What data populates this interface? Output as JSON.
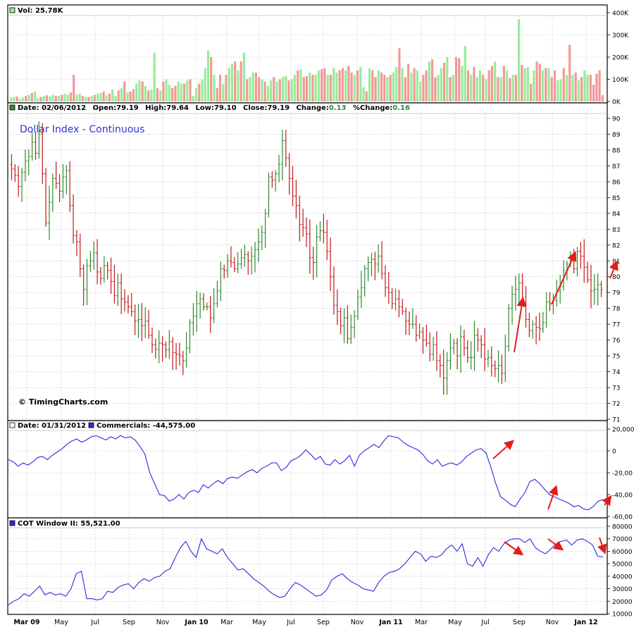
{
  "colors": {
    "up": "#2e8b2e",
    "down": "#c41818",
    "volume_up": "#98ec98",
    "volume_down": "#f29898",
    "line": "#2a2ae0",
    "title": "#3333cc",
    "grid": "#c8c8c8",
    "frame": "#000000",
    "arrow": "#e41b1b"
  },
  "header": {
    "vol_label": "Vol: 25.78K",
    "price_header": {
      "date": "Date: 02/06/2012",
      "open": "Open:79.19",
      "high": "High:79.64",
      "low": "Low:79.10",
      "close": "Close:79.19",
      "change_label": "Change:",
      "change_value": "0.13",
      "pct_label": "%Change:",
      "pct_value": "0.16"
    },
    "comm_header": {
      "date": "Date: 01/31/2012",
      "label": "Commercials: -44,575.00"
    },
    "cot_label": "COT Window II: 55,521.00"
  },
  "chart_title": "Dollar Index - Continuous",
  "watermark": "© TimingCharts.com",
  "chart_data": [
    {
      "type": "bar",
      "name_on_chart": "Vol",
      "x_ticks": [
        "Mar 09",
        "May",
        "Jul",
        "Sep",
        "Nov",
        "Jan 10",
        "Mar",
        "May",
        "Jul",
        "Sep",
        "Nov",
        "Jan 11",
        "Mar",
        "May",
        "Jul",
        "Sep",
        "Nov",
        "Jan 12"
      ],
      "y_tick_labels": [
        "400K",
        "300K",
        "200K",
        "100K",
        "0K"
      ],
      "ylim": [
        0,
        400
      ],
      "unit": "K",
      "values": [
        18,
        20,
        22,
        12,
        18,
        25,
        30,
        38,
        45,
        15,
        20,
        25,
        28,
        22,
        30,
        25,
        25,
        30,
        35,
        30,
        40,
        120,
        30,
        35,
        25,
        20,
        20,
        25,
        30,
        35,
        38,
        45,
        28,
        35,
        55,
        25,
        50,
        60,
        90,
        40,
        45,
        55,
        80,
        95,
        90,
        70,
        50,
        55,
        220,
        60,
        50,
        90,
        100,
        75,
        60,
        70,
        90,
        80,
        80,
        95,
        100,
        25,
        60,
        80,
        100,
        150,
        230,
        200,
        120,
        60,
        120,
        80,
        120,
        150,
        170,
        180,
        140,
        180,
        220,
        100,
        110,
        130,
        130,
        110,
        100,
        90,
        70,
        95,
        110,
        90,
        100,
        110,
        115,
        95,
        100,
        120,
        140,
        145,
        110,
        115,
        130,
        120,
        120,
        140,
        145,
        150,
        120,
        120,
        150,
        130,
        140,
        150,
        140,
        160,
        130,
        120,
        140,
        155,
        65,
        45,
        150,
        140,
        110,
        140,
        130,
        120,
        110,
        120,
        130,
        155,
        240,
        150,
        110,
        170,
        130,
        150,
        140,
        90,
        120,
        140,
        180,
        190,
        110,
        120,
        150,
        175,
        200,
        110,
        120,
        200,
        195,
        160,
        250,
        140,
        120,
        155,
        110,
        140,
        120,
        100,
        140,
        160,
        180,
        110,
        110,
        160,
        140,
        105,
        120,
        120,
        370,
        165,
        150,
        155,
        80,
        140,
        180,
        170,
        140,
        150,
        150,
        110,
        140,
        95,
        100,
        150,
        120,
        255,
        120,
        130,
        95,
        110,
        140,
        120,
        120,
        75,
        125,
        140,
        28
      ],
      "up_flags": [
        1,
        1,
        0,
        1,
        1,
        0,
        1,
        0,
        1,
        1,
        0,
        1,
        0,
        1,
        1,
        0,
        1,
        0,
        1,
        1,
        0,
        0,
        1,
        1,
        0,
        1,
        0,
        1,
        0,
        1,
        1,
        0,
        1,
        0,
        1,
        1,
        0,
        1,
        0,
        1,
        0,
        0,
        1,
        1,
        0,
        1,
        0,
        1,
        1,
        0,
        1,
        0,
        1,
        1,
        0,
        0,
        1,
        1,
        0,
        1,
        0,
        1,
        1,
        0,
        1,
        1,
        1,
        0,
        1,
        0,
        0,
        1,
        0,
        1,
        1,
        0,
        1,
        0,
        1,
        0,
        1,
        1,
        0,
        0,
        1,
        0,
        1,
        1,
        0,
        1,
        0,
        1,
        1,
        0,
        1,
        1,
        0,
        1,
        0,
        0,
        1,
        0,
        1,
        1,
        0,
        0,
        1,
        0,
        1,
        1,
        0,
        0,
        1,
        0,
        0,
        1,
        0,
        1,
        1,
        0,
        1,
        0,
        0,
        1,
        0,
        0,
        1,
        0,
        1,
        1,
        0,
        1,
        0,
        0,
        1,
        0,
        1,
        1,
        0,
        0,
        1,
        0,
        0,
        1,
        1,
        0,
        1,
        0,
        1,
        0,
        0,
        1,
        1,
        0,
        1,
        0,
        1,
        1,
        0,
        1,
        0,
        0,
        1,
        0,
        1,
        0,
        1,
        0,
        1,
        0,
        1,
        0,
        1,
        1,
        0,
        1,
        0,
        0,
        1,
        0,
        1,
        0,
        0,
        1,
        1,
        0,
        1,
        0,
        1,
        0,
        1,
        0,
        1,
        1
      ]
    },
    {
      "type": "ohlc",
      "name_on_chart": "Dollar Index - Continuous",
      "x_ticks": [
        "Mar 09",
        "May",
        "Jul",
        "Sep",
        "Nov",
        "Jan 10",
        "Mar",
        "May",
        "Jul",
        "Sep",
        "Nov",
        "Jan 11",
        "Mar",
        "May",
        "Jul",
        "Sep",
        "Nov",
        "Jan 12"
      ],
      "y_ticks": [
        71,
        72,
        73,
        74,
        75,
        76,
        77,
        78,
        79,
        80,
        81,
        82,
        83,
        84,
        85,
        86,
        87,
        88,
        89,
        90
      ],
      "ylim": [
        71,
        90
      ],
      "closes": [
        86.8,
        86.4,
        85.7,
        86.6,
        87.3,
        87.6,
        88.5,
        87.8,
        89.0,
        86.5,
        83.4,
        84.7,
        86.2,
        85.9,
        85.4,
        86.3,
        86.7,
        84.5,
        82.6,
        82.2,
        80.5,
        79.2,
        80.7,
        81.0,
        81.5,
        80.3,
        79.9,
        80.7,
        80.4,
        79.7,
        78.8,
        79.6,
        78.6,
        78.4,
        78.1,
        77.8,
        77.2,
        77.3,
        76.9,
        77.2,
        76.3,
        75.7,
        75.4,
        75.8,
        75.7,
        75.4,
        75.9,
        75.2,
        75.1,
        75.0,
        74.7,
        75.5,
        77.1,
        77.5,
        78.3,
        78.6,
        78.1,
        78.1,
        77.4,
        78.3,
        79.1,
        80.5,
        80.4,
        81.0,
        80.9,
        80.5,
        80.8,
        81.2,
        81.4,
        81.0,
        81.3,
        81.7,
        82.2,
        82.8,
        84.0,
        86.3,
        86.1,
        86.5,
        87.1,
        88.6,
        87.5,
        86.2,
        85.1,
        84.5,
        83.3,
        83.1,
        82.7,
        81.2,
        80.9,
        82.5,
        82.9,
        82.8,
        81.6,
        80.0,
        78.2,
        77.8,
        76.9,
        77.4,
        76.1,
        76.8,
        77.5,
        78.7,
        79.3,
        80.5,
        80.9,
        81.1,
        80.8,
        81.3,
        80.2,
        79.3,
        79.0,
        78.3,
        78.6,
        78.1,
        77.8,
        77.2,
        77.0,
        77.0,
        76.3,
        76.5,
        76.0,
        75.8,
        75.1,
        75.7,
        74.7,
        74.4,
        73.6,
        74.7,
        75.5,
        75.8,
        75.0,
        76.2,
        75.5,
        74.9,
        74.9,
        76.3,
        76.0,
        75.7,
        74.8,
        74.9,
        74.4,
        74.2,
        74.4,
        73.9,
        75.6,
        78.0,
        78.9,
        79.2,
        79.6,
        78.4,
        77.3,
        76.6,
        77.0,
        76.8,
        76.7,
        77.1,
        78.4,
        78.3,
        78.5,
        79.1,
        79.4,
        80.4,
        80.8,
        81.0,
        80.5,
        81.6,
        81.3,
        80.6,
        79.8,
        79.1,
        79.2,
        79.5,
        79.19
      ],
      "last_close": 79.19
    },
    {
      "type": "line",
      "name_on_chart": "Commercials",
      "y_tick_labels": [
        "20,000",
        "0",
        "-20,00",
        "-40,00",
        "-60,00"
      ],
      "ylim": [
        -60000,
        20000
      ],
      "values": [
        -8000,
        -10000,
        -14000,
        -11000,
        -13000,
        -10000,
        -6000,
        -5000,
        -8000,
        -4000,
        -1000,
        2000,
        6000,
        9000,
        11000,
        8000,
        10000,
        13000,
        14000,
        12000,
        10000,
        13000,
        11000,
        14000,
        12000,
        13000,
        10000,
        4000,
        -3000,
        -20000,
        -30000,
        -40000,
        -41000,
        -46000,
        -44000,
        -40000,
        -44000,
        -38000,
        -36000,
        -38000,
        -31000,
        -34000,
        -30000,
        -27000,
        -30000,
        -25000,
        -24000,
        -25000,
        -22000,
        -19000,
        -17000,
        -20000,
        -16000,
        -14000,
        -11000,
        -11000,
        -18000,
        -15000,
        -9000,
        -7000,
        -4000,
        1000,
        -3000,
        -8000,
        -5000,
        -12000,
        -13000,
        -8000,
        -12000,
        -9000,
        -4000,
        -14000,
        -4000,
        0,
        3000,
        6000,
        3000,
        9000,
        14000,
        13000,
        12000,
        8000,
        5000,
        3000,
        1000,
        -3000,
        -9000,
        -12000,
        -8000,
        -14000,
        -12000,
        -11000,
        -13000,
        -10000,
        -5000,
        -2000,
        1000,
        2000,
        -2000,
        -15000,
        -30000,
        -42000,
        -45000,
        -49000,
        -51000,
        -44000,
        -38000,
        -28000,
        -26000,
        -30000,
        -35000,
        -40000,
        -42000,
        -44000,
        -46000,
        -48000,
        -51000,
        -50000,
        -53000,
        -54000,
        -51000,
        -46000,
        -44575
      ],
      "last_value": -44575
    },
    {
      "type": "line",
      "name_on_chart": "COT Window II",
      "y_tick_labels": [
        "80000",
        "70000",
        "60000",
        "50000",
        "40000",
        "30000",
        "20000",
        "10000"
      ],
      "ylim": [
        10000,
        80000
      ],
      "values": [
        17000,
        20000,
        22000,
        26000,
        24000,
        28000,
        32000,
        25000,
        27000,
        25000,
        26000,
        24000,
        30000,
        42000,
        44000,
        22000,
        22000,
        21000,
        22000,
        28000,
        27000,
        31000,
        33000,
        34000,
        30000,
        35000,
        38000,
        36000,
        39000,
        40000,
        44000,
        46000,
        55000,
        63000,
        68000,
        60000,
        55000,
        70000,
        62000,
        60000,
        58000,
        62000,
        55000,
        50000,
        45000,
        46000,
        42000,
        38000,
        35000,
        32000,
        28000,
        25000,
        23000,
        24000,
        30000,
        35000,
        33000,
        30000,
        27000,
        24000,
        25000,
        29000,
        37000,
        40000,
        42000,
        38000,
        35000,
        33000,
        30000,
        29000,
        28000,
        35000,
        40000,
        43000,
        44000,
        46000,
        50000,
        55000,
        60000,
        58000,
        52000,
        56000,
        55000,
        57000,
        62000,
        65000,
        60000,
        66000,
        50000,
        48000,
        55000,
        48000,
        57000,
        63000,
        60000,
        66000,
        69000,
        70000,
        70000,
        67000,
        70000,
        63000,
        60000,
        58000,
        62000,
        66000,
        68000,
        69000,
        65000,
        69000,
        70000,
        68000,
        65000,
        56000,
        55521
      ],
      "last_value": 55521
    }
  ],
  "annotations": {
    "arrows_count_price": 3,
    "arrows_count_commercials": 3,
    "arrows_count_cot": 3
  }
}
